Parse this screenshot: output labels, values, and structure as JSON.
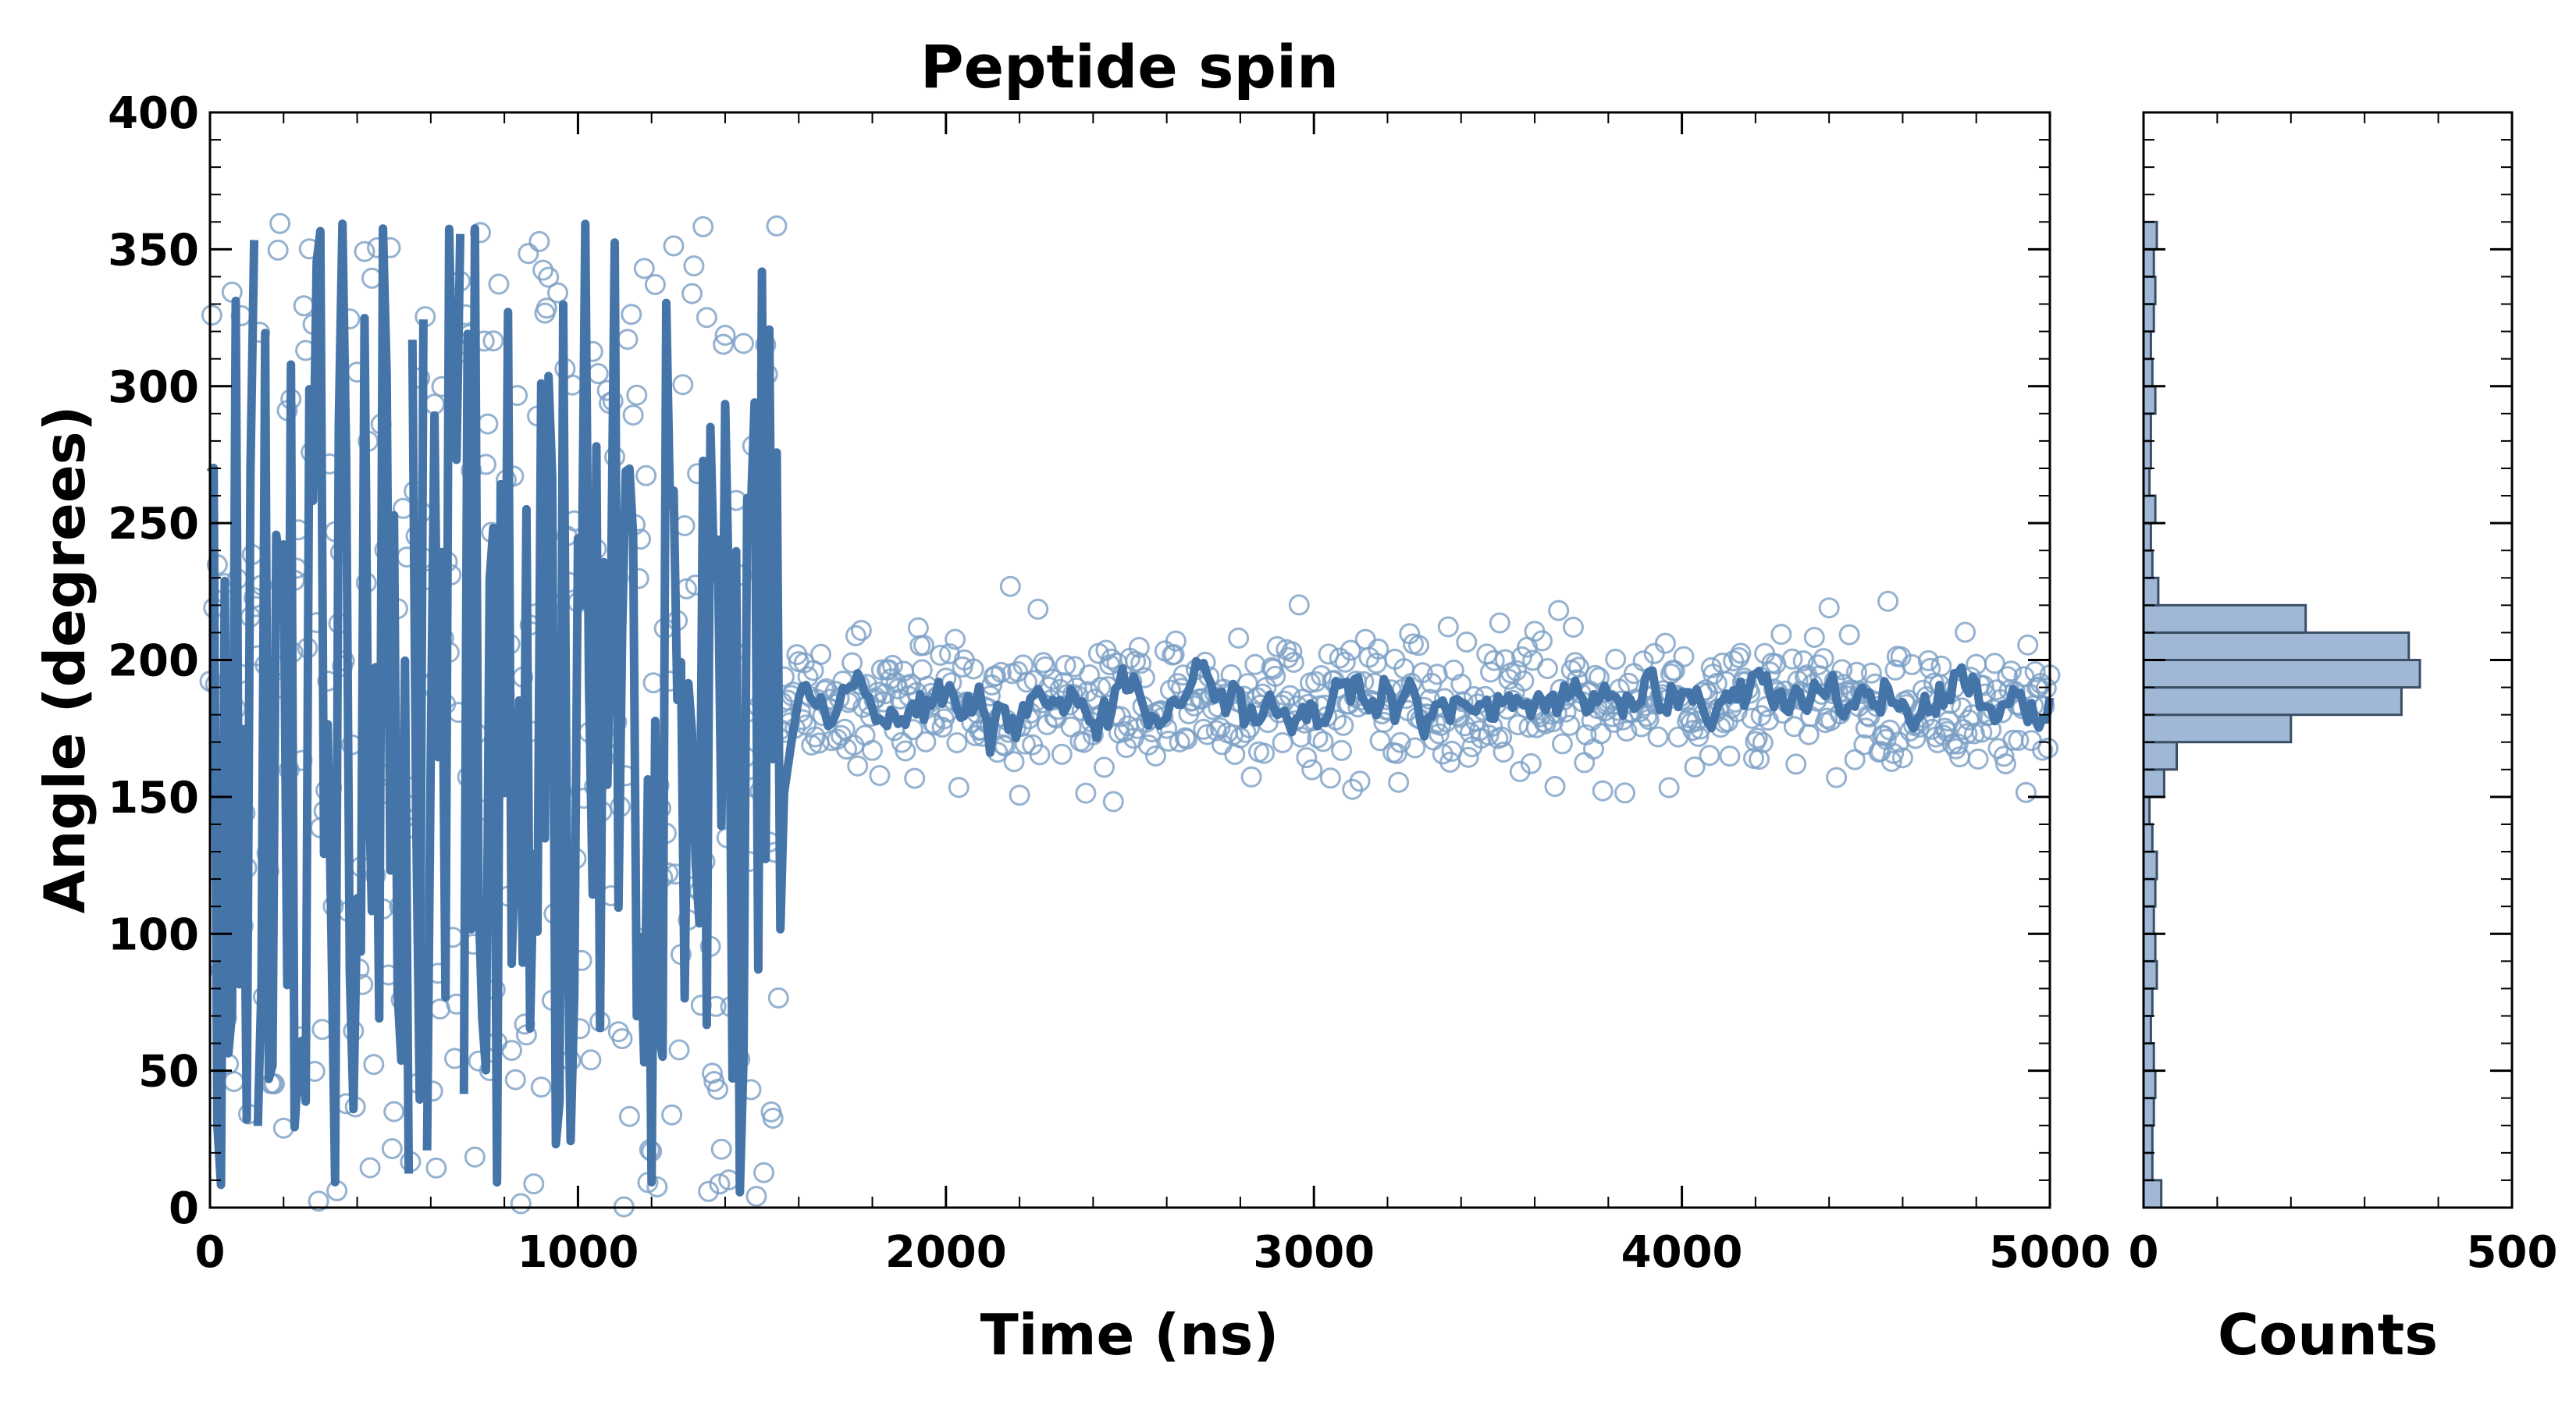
{
  "chart_data": [
    {
      "type": "scatter",
      "title": "Peptide spin",
      "xlabel": "Time (ns)",
      "ylabel": "Angle (degrees)",
      "xlim": [
        0,
        5000
      ],
      "ylim": [
        0,
        400
      ],
      "xticks": [
        0,
        1000,
        2000,
        3000,
        4000,
        5000
      ],
      "yticks": [
        0,
        50,
        100,
        150,
        200,
        250,
        300,
        350,
        400
      ],
      "grid": false,
      "series": [
        {
          "marker": "open-circle",
          "color": "#7b9fc4",
          "description": "raw angle samples every 5 ns",
          "phases": [
            {
              "x_range": [
                0,
                1550
              ],
              "behavior": "uniform random over full range",
              "y_range": [
                0,
                360
              ]
            },
            {
              "x_range": [
                1550,
                5000
              ],
              "behavior": "fluctuating about mean",
              "mean": 185,
              "spread_sd": 13
            }
          ]
        },
        {
          "marker": "line",
          "color": "#4575a8",
          "description": "smoothed angle trace",
          "phases": [
            {
              "x_range": [
                0,
                1560
              ],
              "behavior": "erratic jumps across full range, breaks at 0/360 wrap",
              "y_range": [
                0,
                360
              ]
            },
            {
              "x_range": [
                1560,
                5000
              ],
              "behavior": "settles near mean",
              "mean": 185,
              "spread_sd": 5
            }
          ]
        }
      ]
    },
    {
      "type": "bar",
      "orientation": "horizontal",
      "xlabel": "Counts",
      "xlim": [
        0,
        500
      ],
      "xticks": [
        0,
        500
      ],
      "ylim": [
        0,
        400
      ],
      "bin_width": 10,
      "color": "#a0b8d6",
      "edge_color": "#3a4f66",
      "bins": [
        {
          "y": 0,
          "count": 24
        },
        {
          "y": 10,
          "count": 12
        },
        {
          "y": 20,
          "count": 12
        },
        {
          "y": 30,
          "count": 14
        },
        {
          "y": 40,
          "count": 16
        },
        {
          "y": 50,
          "count": 14
        },
        {
          "y": 60,
          "count": 10
        },
        {
          "y": 70,
          "count": 12
        },
        {
          "y": 80,
          "count": 18
        },
        {
          "y": 90,
          "count": 16
        },
        {
          "y": 100,
          "count": 14
        },
        {
          "y": 110,
          "count": 16
        },
        {
          "y": 120,
          "count": 18
        },
        {
          "y": 130,
          "count": 12
        },
        {
          "y": 140,
          "count": 8
        },
        {
          "y": 150,
          "count": 28
        },
        {
          "y": 160,
          "count": 45
        },
        {
          "y": 170,
          "count": 200
        },
        {
          "y": 180,
          "count": 350
        },
        {
          "y": 190,
          "count": 375
        },
        {
          "y": 200,
          "count": 360
        },
        {
          "y": 210,
          "count": 220
        },
        {
          "y": 220,
          "count": 20
        },
        {
          "y": 230,
          "count": 12
        },
        {
          "y": 240,
          "count": 10
        },
        {
          "y": 250,
          "count": 16
        },
        {
          "y": 260,
          "count": 8
        },
        {
          "y": 270,
          "count": 10
        },
        {
          "y": 280,
          "count": 10
        },
        {
          "y": 290,
          "count": 16
        },
        {
          "y": 300,
          "count": 12
        },
        {
          "y": 310,
          "count": 10
        },
        {
          "y": 320,
          "count": 14
        },
        {
          "y": 330,
          "count": 16
        },
        {
          "y": 340,
          "count": 14
        },
        {
          "y": 350,
          "count": 18
        }
      ]
    }
  ]
}
